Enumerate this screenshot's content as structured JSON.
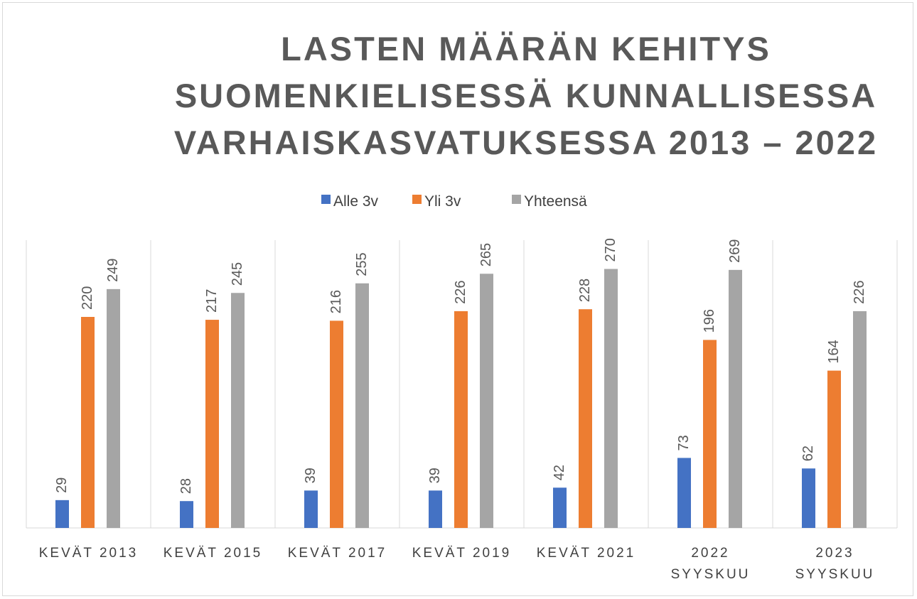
{
  "chart_data": {
    "type": "bar",
    "title": "LASTEN MÄÄRÄN KEHITYS\nSUOMENKIELISESSÄ KUNNALLISESSA\nVARHAISKASVATUKSESSA 2013 – 2022",
    "categories": [
      "KEVÄT 2013",
      "KEVÄT 2015",
      "KEVÄT 2017",
      "KEVÄT 2019",
      "KEVÄT 2021",
      "2022\nSYYSKUU",
      "2023\nSYYSKUU"
    ],
    "series": [
      {
        "name": "Alle 3v",
        "color": "#4472c4",
        "values": [
          29,
          28,
          39,
          39,
          42,
          73,
          62
        ]
      },
      {
        "name": "Yli 3v",
        "color": "#ed7d31",
        "values": [
          220,
          217,
          216,
          226,
          228,
          196,
          164
        ]
      },
      {
        "name": "Yhteensä",
        "color": "#a5a5a5",
        "values": [
          249,
          245,
          255,
          265,
          270,
          269,
          226
        ]
      }
    ],
    "ylim": [
      0,
      300
    ]
  }
}
